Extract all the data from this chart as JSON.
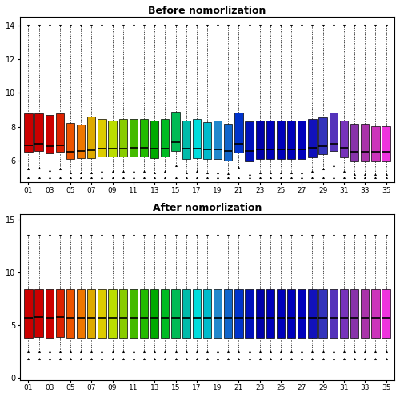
{
  "title1": "Before nomorlization",
  "title2": "After nomorlization",
  "xtick_labels": [
    "01",
    "03",
    "05",
    "07",
    "09",
    "11",
    "13",
    "15",
    "17",
    "19",
    "21",
    "23",
    "25",
    "27",
    "29",
    "31",
    "33",
    "35"
  ],
  "n_samples": 35,
  "colors": [
    "#CC0000",
    "#CC0000",
    "#CC0000",
    "#DD2200",
    "#EE5500",
    "#EE7700",
    "#DDAA00",
    "#DDCC00",
    "#BBDD00",
    "#88CC00",
    "#44BB00",
    "#22BB00",
    "#00AA00",
    "#00BB22",
    "#00BB55",
    "#00BBAA",
    "#00DDDD",
    "#00BBCC",
    "#2288CC",
    "#1166CC",
    "#0033CC",
    "#0011BB",
    "#0000AA",
    "#0000BB",
    "#0000BB",
    "#0000BB",
    "#0000BB",
    "#1111BB",
    "#3333BB",
    "#5533BB",
    "#7733BB",
    "#8833AA",
    "#AA33AA",
    "#CC33BB",
    "#EE33DD"
  ],
  "before_median": [
    6.9,
    7.0,
    6.85,
    6.9,
    6.5,
    6.55,
    6.6,
    6.7,
    6.7,
    6.7,
    6.75,
    6.75,
    6.7,
    6.7,
    7.1,
    6.7,
    6.7,
    6.65,
    6.65,
    6.55,
    7.0,
    6.55,
    6.65,
    6.65,
    6.65,
    6.65,
    6.65,
    6.75,
    6.85,
    7.0,
    6.75,
    6.5,
    6.5,
    6.5,
    6.5
  ],
  "before_q1": [
    6.5,
    6.55,
    6.4,
    6.5,
    6.1,
    6.15,
    6.15,
    6.25,
    6.25,
    6.25,
    6.25,
    6.25,
    6.15,
    6.25,
    6.55,
    6.1,
    6.15,
    6.1,
    6.1,
    6.0,
    6.45,
    5.95,
    6.1,
    6.1,
    6.1,
    6.1,
    6.1,
    6.2,
    6.35,
    6.55,
    6.2,
    5.95,
    5.95,
    5.95,
    5.95
  ],
  "before_q3": [
    8.8,
    8.8,
    8.7,
    8.8,
    8.2,
    8.1,
    8.6,
    8.45,
    8.35,
    8.45,
    8.45,
    8.45,
    8.35,
    8.45,
    8.9,
    8.35,
    8.45,
    8.25,
    8.35,
    8.15,
    8.85,
    8.3,
    8.35,
    8.35,
    8.35,
    8.35,
    8.35,
    8.45,
    8.55,
    8.85,
    8.35,
    8.15,
    8.15,
    8.05,
    8.05
  ],
  "before_whislo": [
    5.5,
    5.55,
    5.45,
    5.5,
    5.3,
    5.3,
    5.3,
    5.4,
    5.4,
    5.4,
    5.4,
    5.4,
    5.3,
    5.4,
    5.7,
    5.3,
    5.4,
    5.3,
    5.3,
    5.25,
    5.6,
    5.2,
    5.3,
    5.3,
    5.3,
    5.3,
    5.3,
    5.4,
    5.5,
    5.7,
    5.4,
    5.2,
    5.2,
    5.2,
    5.2
  ],
  "before_whishi": [
    14.0,
    14.0,
    14.0,
    14.0,
    14.0,
    14.0,
    14.0,
    14.0,
    14.0,
    14.0,
    14.0,
    14.0,
    14.0,
    14.0,
    14.0,
    14.0,
    14.0,
    14.0,
    14.0,
    14.0,
    14.0,
    14.0,
    14.0,
    14.0,
    14.0,
    14.0,
    14.0,
    14.0,
    14.0,
    14.0,
    14.0,
    14.0,
    14.0,
    14.0,
    14.0
  ],
  "before_flier_lo": [
    5.0,
    5.0,
    5.0,
    5.0,
    5.0,
    5.0,
    5.0,
    5.0,
    5.0,
    5.0,
    5.0,
    5.0,
    5.0,
    5.0,
    5.0,
    5.0,
    5.0,
    5.0,
    5.0,
    5.0,
    5.0,
    5.0,
    5.0,
    5.0,
    5.0,
    5.0,
    5.0,
    5.0,
    5.0,
    5.0,
    5.0,
    5.0,
    5.0,
    5.0,
    5.0
  ],
  "after_median": [
    5.7,
    5.75,
    5.7,
    5.75,
    5.7,
    5.65,
    5.65,
    5.65,
    5.65,
    5.65,
    5.65,
    5.65,
    5.65,
    5.65,
    5.65,
    5.65,
    5.65,
    5.65,
    5.65,
    5.65,
    5.7,
    5.65,
    5.65,
    5.65,
    5.65,
    5.65,
    5.65,
    5.65,
    5.65,
    5.65,
    5.65,
    5.65,
    5.65,
    5.65,
    5.65
  ],
  "after_q1": [
    3.8,
    3.85,
    3.8,
    3.85,
    3.8,
    3.8,
    3.8,
    3.8,
    3.8,
    3.8,
    3.8,
    3.8,
    3.8,
    3.8,
    3.8,
    3.8,
    3.8,
    3.8,
    3.8,
    3.8,
    3.8,
    3.8,
    3.8,
    3.8,
    3.8,
    3.8,
    3.8,
    3.8,
    3.8,
    3.8,
    3.8,
    3.8,
    3.8,
    3.8,
    3.8
  ],
  "after_q3": [
    8.4,
    8.4,
    8.4,
    8.4,
    8.4,
    8.4,
    8.4,
    8.4,
    8.4,
    8.4,
    8.4,
    8.4,
    8.4,
    8.4,
    8.4,
    8.4,
    8.4,
    8.4,
    8.4,
    8.4,
    8.4,
    8.4,
    8.4,
    8.4,
    8.4,
    8.4,
    8.4,
    8.4,
    8.4,
    8.4,
    8.4,
    8.4,
    8.4,
    8.4,
    8.4
  ],
  "after_whislo": [
    2.5,
    2.5,
    2.5,
    2.5,
    2.5,
    2.5,
    2.5,
    2.5,
    2.5,
    2.5,
    2.5,
    2.5,
    2.5,
    2.5,
    2.5,
    2.5,
    2.5,
    2.5,
    2.5,
    2.5,
    2.5,
    2.5,
    2.5,
    2.5,
    2.5,
    2.5,
    2.5,
    2.5,
    2.5,
    2.5,
    2.5,
    2.5,
    2.5,
    2.5,
    2.5
  ],
  "after_whishi": [
    13.5,
    13.5,
    13.5,
    13.5,
    13.5,
    13.5,
    13.5,
    13.5,
    13.5,
    13.5,
    13.5,
    13.5,
    13.5,
    13.5,
    13.5,
    13.5,
    13.5,
    13.5,
    13.5,
    13.5,
    13.5,
    13.5,
    13.5,
    13.5,
    13.5,
    13.5,
    13.5,
    13.5,
    13.5,
    13.5,
    13.5,
    13.5,
    13.5,
    13.5,
    13.5
  ],
  "after_flier_lo": [
    1.8,
    1.8,
    1.8,
    1.8,
    1.8,
    1.8,
    1.8,
    1.8,
    1.8,
    1.8,
    1.8,
    1.8,
    1.8,
    1.8,
    1.8,
    1.8,
    1.8,
    1.8,
    1.8,
    1.8,
    1.8,
    1.8,
    1.8,
    1.8,
    1.8,
    1.8,
    1.8,
    1.8,
    1.8,
    1.8,
    1.8,
    1.8,
    1.8,
    1.8,
    1.8
  ],
  "before_ylim": [
    4.7,
    14.5
  ],
  "after_ylim": [
    -0.2,
    15.5
  ],
  "before_yticks": [
    6,
    8,
    10,
    12,
    14
  ],
  "after_yticks": [
    0,
    5,
    10,
    15
  ],
  "bg_color": "#FFFFFF"
}
